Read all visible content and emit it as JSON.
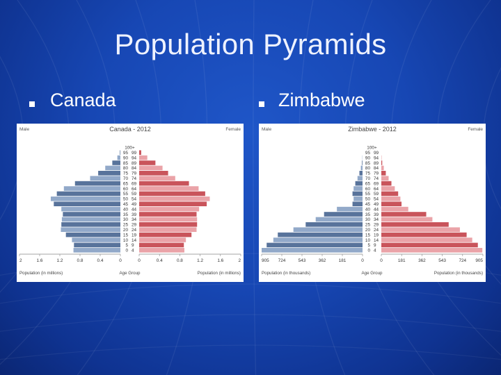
{
  "slide": {
    "title": "Population Pyramids",
    "bullets": [
      "Canada",
      "Zimbabwe"
    ]
  },
  "colors": {
    "male_dark": "#58739b",
    "male_light": "#92a9c9",
    "female_dark": "#c9545b",
    "female_light": "#eaa3a8"
  },
  "chart_data": [
    {
      "type": "bar",
      "title": "Canada - 2012",
      "left_header": "Male",
      "right_header": "Female",
      "center_header": "100+",
      "xlabel_left": "Population (in millions)",
      "xlabel_center": "Age Group",
      "xlabel_right": "Population (in millions)",
      "max": 2,
      "ticks": [
        "2",
        "1.6",
        "1.2",
        "0.8",
        "0.4",
        "0",
        "0",
        "0.4",
        "0.8",
        "1.2",
        "1.6",
        "2"
      ],
      "categories": [
        "0 - 4",
        "5 - 9",
        "10 - 14",
        "15 - 19",
        "20 - 24",
        "25 - 29",
        "30 - 34",
        "35 - 39",
        "40 - 44",
        "45 - 49",
        "50 - 54",
        "55 - 59",
        "60 - 64",
        "65 - 69",
        "70 - 74",
        "75 - 79",
        "80 - 84",
        "85 - 89",
        "90 - 94",
        "95 - 99"
      ],
      "series": [
        {
          "name": "Male",
          "values": [
            0.93,
            0.92,
            0.96,
            1.08,
            1.18,
            1.17,
            1.16,
            1.14,
            1.17,
            1.32,
            1.38,
            1.26,
            1.12,
            0.9,
            0.6,
            0.44,
            0.3,
            0.16,
            0.06,
            0.01
          ]
        },
        {
          "name": "Female",
          "values": [
            0.89,
            0.88,
            0.92,
            1.03,
            1.13,
            1.14,
            1.14,
            1.13,
            1.18,
            1.33,
            1.39,
            1.3,
            1.17,
            0.98,
            0.71,
            0.57,
            0.46,
            0.32,
            0.16,
            0.04
          ]
        }
      ]
    },
    {
      "type": "bar",
      "title": "Zimbabwe - 2012",
      "left_header": "Male",
      "right_header": "Female",
      "center_header": "100+",
      "xlabel_left": "Population (in thousands)",
      "xlabel_center": "Age Group",
      "xlabel_right": "Population (in thousands)",
      "max": 905,
      "ticks": [
        "905",
        "724",
        "543",
        "362",
        "181",
        "0",
        "0",
        "181",
        "362",
        "543",
        "724",
        "905"
      ],
      "categories": [
        "0 - 4",
        "5 - 9",
        "10 - 14",
        "15 - 19",
        "20 - 24",
        "25 - 29",
        "30 - 34",
        "35 - 39",
        "40 - 44",
        "45 - 49",
        "50 - 54",
        "55 - 59",
        "60 - 64",
        "65 - 69",
        "70 - 74",
        "75 - 79",
        "80 - 84",
        "85 - 89",
        "90 - 94",
        "95 - 99"
      ],
      "series": [
        {
          "name": "Male",
          "values": [
            905,
            860,
            800,
            760,
            620,
            510,
            420,
            345,
            230,
            90,
            80,
            90,
            80,
            65,
            45,
            28,
            15,
            5,
            2,
            0
          ]
        },
        {
          "name": "Female",
          "values": [
            900,
            860,
            810,
            760,
            700,
            600,
            455,
            400,
            240,
            180,
            170,
            150,
            120,
            90,
            65,
            40,
            22,
            8,
            3,
            0
          ]
        }
      ]
    }
  ]
}
